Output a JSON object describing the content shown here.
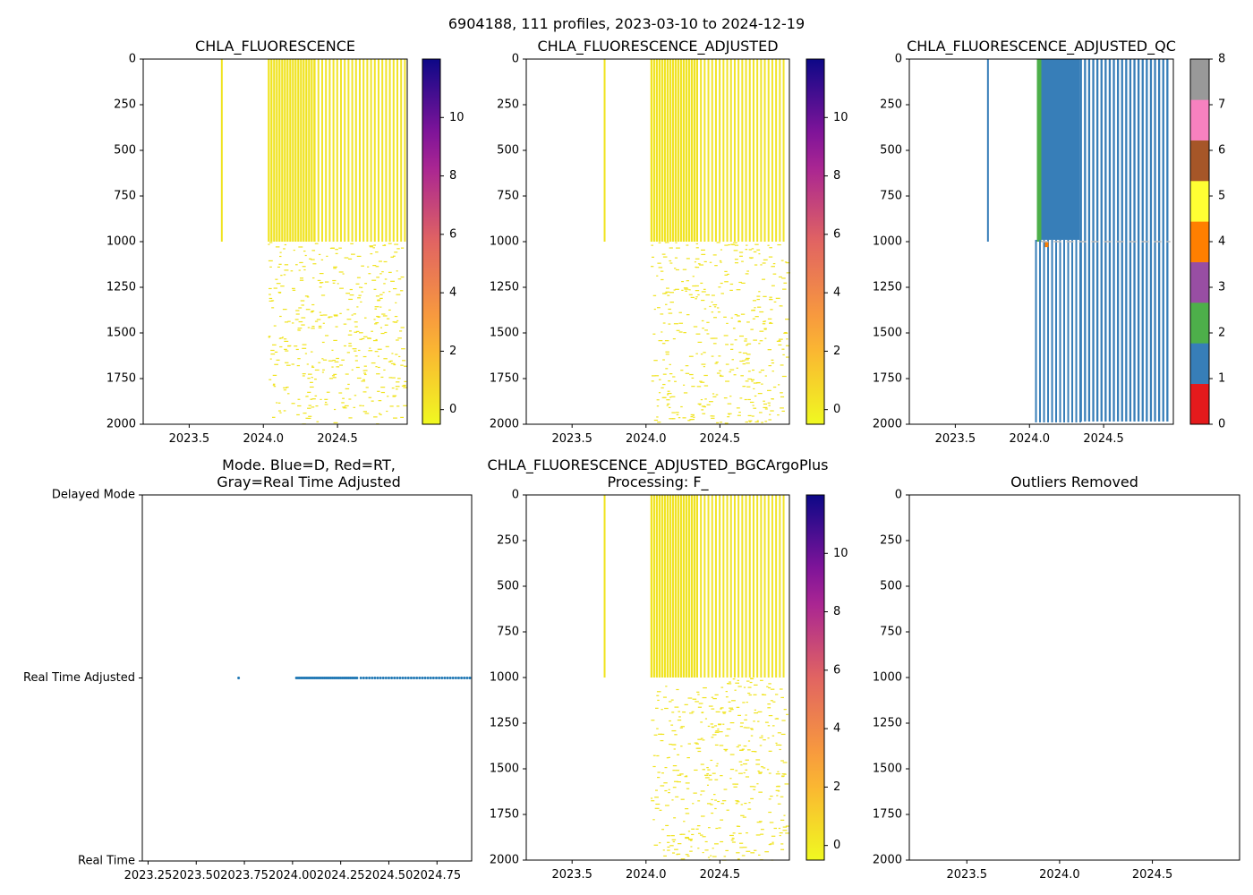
{
  "figure_title": "6904188, 111 profiles, 2023-03-10 to 2024-12-19",
  "colors": {
    "viridis_low": "#f0e31e",
    "qc_blue": "#377eb8",
    "qc_green": "#4daf4a",
    "qc_gray": "#bbbbbb",
    "mode_blue": "#1f77b4"
  },
  "chart_data": [
    {
      "id": "p1",
      "type": "heatmap",
      "title": "CHLA_FLUORESCENCE",
      "xlabel": "",
      "ylabel": "",
      "xlim": [
        2023.19,
        2024.97
      ],
      "ylim": [
        2000,
        0
      ],
      "xticks": [
        2023.5,
        2024.0,
        2024.5
      ],
      "xtick_labels": [
        "2023.5",
        "2024.0",
        "2024.5"
      ],
      "yticks": [
        0,
        250,
        500,
        750,
        1000,
        1250,
        1500,
        1750,
        2000
      ],
      "colorbar": {
        "colormap": "plasma_r",
        "range": [
          -0.5,
          12
        ],
        "ticks": [
          0,
          2,
          4,
          6,
          8,
          10
        ]
      },
      "profile_dates": {
        "single": [
          2023.72
        ],
        "dense_start": 2024.03,
        "dense_end": 2024.34,
        "sparse_end": 2024.95
      },
      "upper_depth_limit": 1000,
      "max_depth": 2000
    },
    {
      "id": "p2",
      "type": "heatmap",
      "title": "CHLA_FLUORESCENCE_ADJUSTED",
      "xlabel": "",
      "ylabel": "",
      "xlim": [
        2023.19,
        2024.97
      ],
      "ylim": [
        2000,
        0
      ],
      "xticks": [
        2023.5,
        2024.0,
        2024.5
      ],
      "xtick_labels": [
        "2023.5",
        "2024.0",
        "2024.5"
      ],
      "yticks": [
        0,
        250,
        500,
        750,
        1000,
        1250,
        1500,
        1750,
        2000
      ],
      "colorbar": {
        "colormap": "plasma_r",
        "range": [
          -0.5,
          12
        ],
        "ticks": [
          0,
          2,
          4,
          6,
          8,
          10
        ]
      },
      "profile_dates": {
        "single": [
          2023.72
        ],
        "dense_start": 2024.03,
        "dense_end": 2024.34,
        "sparse_end": 2024.95
      },
      "upper_depth_limit": 1000,
      "max_depth": 2000
    },
    {
      "id": "p3",
      "type": "heatmap",
      "title": "CHLA_FLUORESCENCE_ADJUSTED_QC",
      "xlabel": "",
      "ylabel": "",
      "xlim": [
        2023.19,
        2024.97
      ],
      "ylim": [
        2000,
        0
      ],
      "xticks": [
        2023.5,
        2024.0,
        2024.5
      ],
      "xtick_labels": [
        "2023.5",
        "2024.0",
        "2024.5"
      ],
      "yticks": [
        0,
        250,
        500,
        750,
        1000,
        1250,
        1500,
        1750,
        2000
      ],
      "colorbar": {
        "colormap": "Set1",
        "range": [
          0,
          8
        ],
        "ticks": [
          0,
          1,
          2,
          3,
          4,
          5,
          6,
          7,
          8
        ],
        "bands": [
          "#e41a1c",
          "#377eb8",
          "#4daf4a",
          "#984ea3",
          "#ff7f00",
          "#ffff33",
          "#a65628",
          "#f781bf",
          "#999999"
        ]
      },
      "qc_flag_mostly": 1,
      "qc_flag_early_profile": 2,
      "profile_dates": {
        "single": [
          2023.72
        ],
        "green_start": 2024.05,
        "green_end": 2024.08,
        "dense_end": 2024.34,
        "sparse_end": 2024.95
      },
      "max_depth": 2000
    },
    {
      "id": "p4",
      "type": "scatter",
      "title": "Mode. Blue=D, Red=RT,\nGray=Real Time Adjusted",
      "xlabel": "",
      "ylabel": "",
      "xlim": [
        2023.22,
        2024.93
      ],
      "xticks": [
        2023.25,
        2023.5,
        2023.75,
        2024.0,
        2024.25,
        2024.5,
        2024.75
      ],
      "xtick_labels": [
        "2023.25",
        "2023.50",
        "2023.75",
        "2024.00",
        "2024.25",
        "2024.50",
        "2024.75"
      ],
      "ycategories": [
        "Real Time",
        "Real Time Adjusted",
        "Delayed Mode"
      ],
      "points_category": "Real Time Adjusted",
      "profile_dates": {
        "single": [
          2023.72
        ],
        "dense_start": 2024.02,
        "dense_end": 2024.34,
        "sparse_end": 2024.93
      }
    },
    {
      "id": "p5",
      "type": "heatmap",
      "title": "CHLA_FLUORESCENCE_ADJUSTED_BGCArgoPlus\nProcessing: F_",
      "xlabel": "",
      "ylabel": "",
      "xlim": [
        2023.19,
        2024.97
      ],
      "ylim": [
        2000,
        0
      ],
      "xticks": [
        2023.5,
        2024.0,
        2024.5
      ],
      "xtick_labels": [
        "2023.5",
        "2024.0",
        "2024.5"
      ],
      "yticks": [
        0,
        250,
        500,
        750,
        1000,
        1250,
        1500,
        1750,
        2000
      ],
      "colorbar": {
        "colormap": "plasma_r",
        "range": [
          -0.5,
          12
        ],
        "ticks": [
          0,
          2,
          4,
          6,
          8,
          10
        ]
      },
      "profile_dates": {
        "single": [
          2023.72
        ],
        "dense_start": 2024.03,
        "dense_end": 2024.34,
        "sparse_end": 2024.95
      },
      "upper_depth_limit": 1000,
      "max_depth": 2000
    },
    {
      "id": "p6",
      "type": "scatter",
      "title": "Outliers Removed",
      "xlabel": "",
      "ylabel": "",
      "xlim": [
        2023.19,
        2024.97
      ],
      "ylim": [
        2000,
        0
      ],
      "xticks": [
        2023.5,
        2024.0,
        2024.5
      ],
      "xtick_labels": [
        "2023.5",
        "2024.0",
        "2024.5"
      ],
      "yticks": [
        0,
        250,
        500,
        750,
        1000,
        1250,
        1500,
        1750,
        2000
      ],
      "points": []
    }
  ]
}
